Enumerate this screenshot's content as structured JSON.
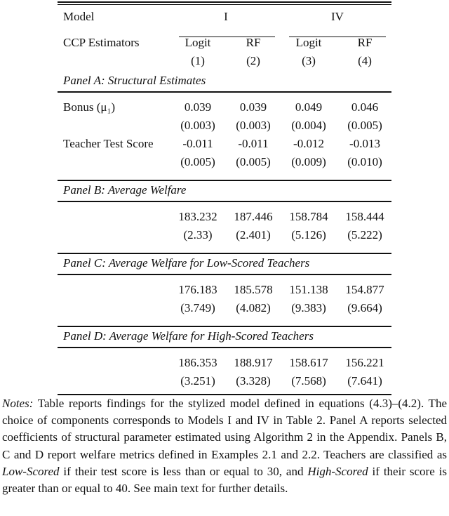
{
  "header": {
    "model_label": "Model",
    "model_groups": [
      "I",
      "IV"
    ],
    "estimators_label": "CCP Estimators",
    "estimators": [
      "Logit",
      "RF",
      "Logit",
      "RF"
    ],
    "col_numbers": [
      "(1)",
      "(2)",
      "(3)",
      "(4)"
    ]
  },
  "panels": [
    {
      "title": "Panel A: Structural Estimates",
      "rows": [
        {
          "label": "Bonus (μ₁)",
          "values": [
            "0.039",
            "0.039",
            "0.049",
            "0.046"
          ],
          "se": [
            "(0.003)",
            "(0.003)",
            "(0.004)",
            "(0.005)"
          ]
        },
        {
          "label": "Teacher Test Score",
          "values": [
            "-0.011",
            "-0.011",
            "-0.012",
            "-0.013"
          ],
          "se": [
            "(0.005)",
            "(0.005)",
            "(0.009)",
            "(0.010)"
          ]
        }
      ]
    },
    {
      "title": "Panel B: Average Welfare",
      "rows": [
        {
          "label": "",
          "values": [
            "183.232",
            "187.446",
            "158.784",
            "158.444"
          ],
          "se": [
            "(2.33)",
            "(2.401)",
            "(5.126)",
            "(5.222)"
          ]
        }
      ]
    },
    {
      "title": "Panel C: Average Welfare for Low-Scored Teachers",
      "rows": [
        {
          "label": "",
          "values": [
            "176.183",
            "185.578",
            "151.138",
            "154.877"
          ],
          "se": [
            "(3.749)",
            "(4.082)",
            "(9.383)",
            "(9.664)"
          ]
        }
      ]
    },
    {
      "title": "Panel D: Average Welfare for High-Scored Teachers",
      "rows": [
        {
          "label": "",
          "values": [
            "186.353",
            "188.917",
            "158.617",
            "156.221"
          ],
          "se": [
            "(3.251)",
            "(3.328)",
            "(7.568)",
            "(7.641)"
          ]
        }
      ]
    }
  ],
  "notes": {
    "lead": "Notes:",
    "p1": " Table reports findings for the stylized model defined in equations (4.3)–(4.2). The choice of components corresponds to Models I and IV in Table 2. Panel A reports selected coefficients of structural parameter estimated using Algorithm 2 in the Appendix. Panels B, C and D report welfare metrics defined in Examples 2.1 and 2.2. Teachers are classified as ",
    "low": "Low-Scored",
    "p2": " if their test score is less than or equal to 30, and ",
    "high": "High-Scored",
    "p3": " if their score is greater than or equal to 40. See main text for further details."
  }
}
